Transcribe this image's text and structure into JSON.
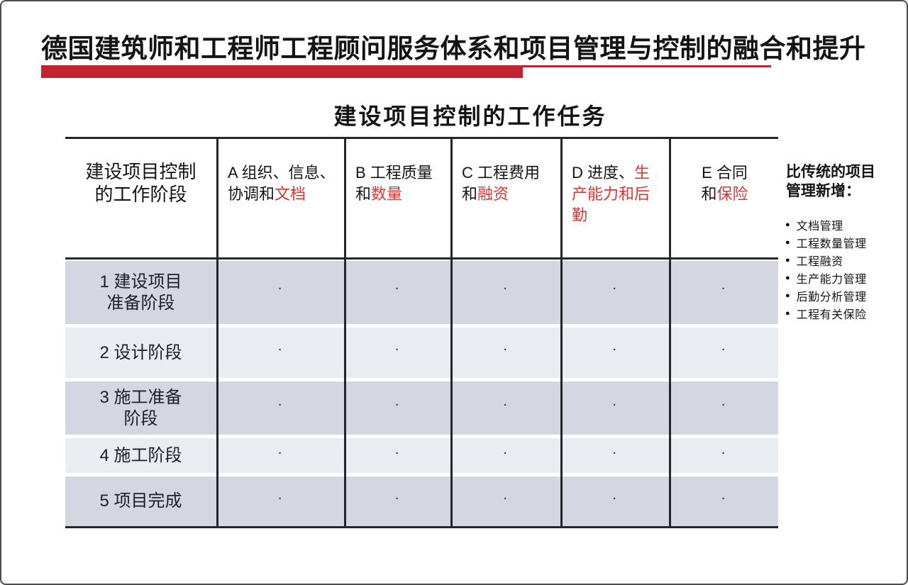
{
  "page": {
    "title": "德国建筑师和工程师工程顾问服务体系和项目管理与控制的融合和提升",
    "subtitle": "建设项目控制的工作任务"
  },
  "colors": {
    "accent_red": "#c2242e",
    "text_red": "#e03330",
    "row_dark": "#d4d7e1",
    "row_light": "#e9edf1",
    "table_line": "#26262a"
  },
  "table": {
    "stage_header": "建设项目控制\n的工作阶段",
    "task_columns": [
      {
        "id": "A",
        "label_black": "A 组织、信息、协调和",
        "label_red": "文档"
      },
      {
        "id": "B",
        "label_black": "B 工程质量和",
        "label_red": "数量"
      },
      {
        "id": "C",
        "label_black": "C 工程费用和",
        "label_red": "融资"
      },
      {
        "id": "D",
        "label_black": "D 进度、",
        "label_red": "生产能力和后勤"
      },
      {
        "id": "E",
        "label_black": "E 合同\n和",
        "label_red": "保险"
      }
    ],
    "rows": [
      {
        "label": "1 建设项目\n准备阶段"
      },
      {
        "label": "2 设计阶段"
      },
      {
        "label": "3 施工准备\n阶段"
      },
      {
        "label": "4 施工阶段"
      },
      {
        "label": "5 项目完成"
      }
    ],
    "cell_marker": "·"
  },
  "sidebar": {
    "heading": "比传统的项目\n管理新增：",
    "bullet_glyph": "●",
    "items": [
      "文档管理",
      "工程数量管理",
      "工程融资",
      "生产能力管理",
      "后勤分析管理",
      "工程有关保险"
    ]
  }
}
